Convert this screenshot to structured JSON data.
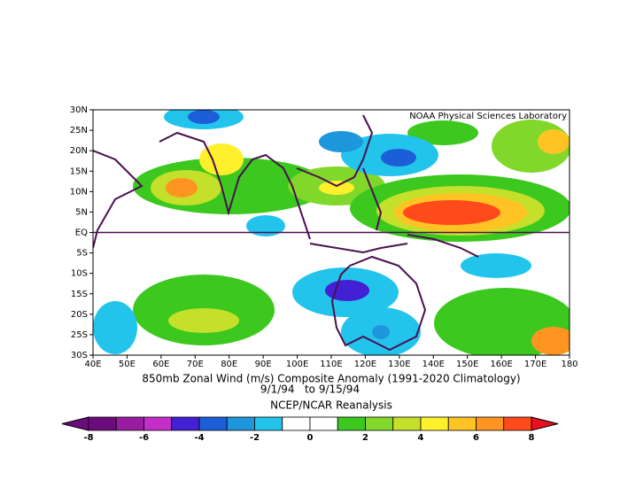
{
  "map": {
    "credit": "NOAA Physical Sciences Laboratory",
    "title": "850mb Zonal Wind (m/s) Composite Anomaly (1991-2020 Climatology)",
    "dates": "9/1/94   to 9/15/94",
    "source": "NCEP/NCAR Reanalysis",
    "lon_labels": [
      "40E",
      "50E",
      "60E",
      "70E",
      "80E",
      "90E",
      "100E",
      "110E",
      "120E",
      "130E",
      "140E",
      "150E",
      "160E",
      "170E",
      "180"
    ],
    "lat_labels": [
      "30N",
      "25N",
      "20N",
      "15N",
      "10N",
      "5N",
      "EQ",
      "5S",
      "10S",
      "15S",
      "20S",
      "25S",
      "30S"
    ],
    "colorbar": {
      "ticks": [
        -8,
        -6,
        -4,
        -2,
        0,
        2,
        4,
        6,
        8
      ],
      "colors": [
        "#6a0c7c",
        "#9a1ca0",
        "#c42ec8",
        "#4420d4",
        "#1c5ed8",
        "#1e96dc",
        "#22c4ec",
        "#ffffff",
        "#ffffff",
        "#3cc81e",
        "#82d82a",
        "#c4e02a",
        "#fff02c",
        "#ffc424",
        "#ff9420",
        "#ff4a1c"
      ],
      "under": "#6a0c7c",
      "over": "#e8101c"
    }
  }
}
